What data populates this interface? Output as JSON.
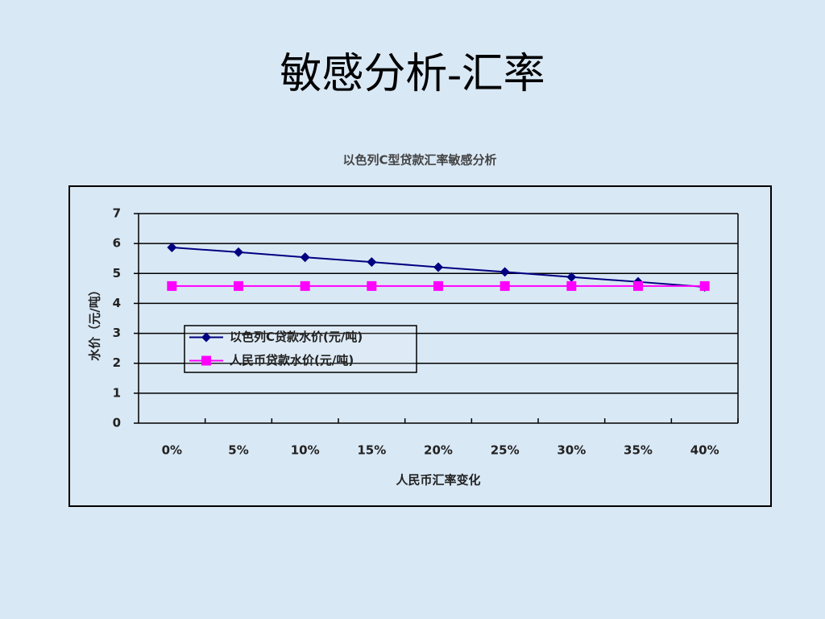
{
  "slide_title": "敏感分析-汇率",
  "chart_data": {
    "type": "line",
    "title": "以色列C型贷款汇率敏感分析",
    "x_label": "人民币汇率变化",
    "y_label": "水价（元/吨）",
    "categories": [
      "0%",
      "5%",
      "10%",
      "15%",
      "20%",
      "25%",
      "30%",
      "35%",
      "40%"
    ],
    "series": [
      {
        "name": "以色列C贷款水价(元/吨)",
        "color": "#000080",
        "marker": "diamond",
        "values": [
          5.87,
          5.71,
          5.54,
          5.38,
          5.21,
          5.05,
          4.88,
          4.72,
          4.55
        ]
      },
      {
        "name": "人民币贷款水价(元/吨)",
        "color": "#ff00ff",
        "marker": "square",
        "values": [
          4.58,
          4.58,
          4.58,
          4.58,
          4.58,
          4.58,
          4.58,
          4.58,
          4.58
        ]
      }
    ],
    "ylim": [
      0,
      7
    ],
    "yticks": [
      0,
      1,
      2,
      3,
      4,
      5,
      6,
      7
    ],
    "grid": true,
    "legend": "left"
  }
}
